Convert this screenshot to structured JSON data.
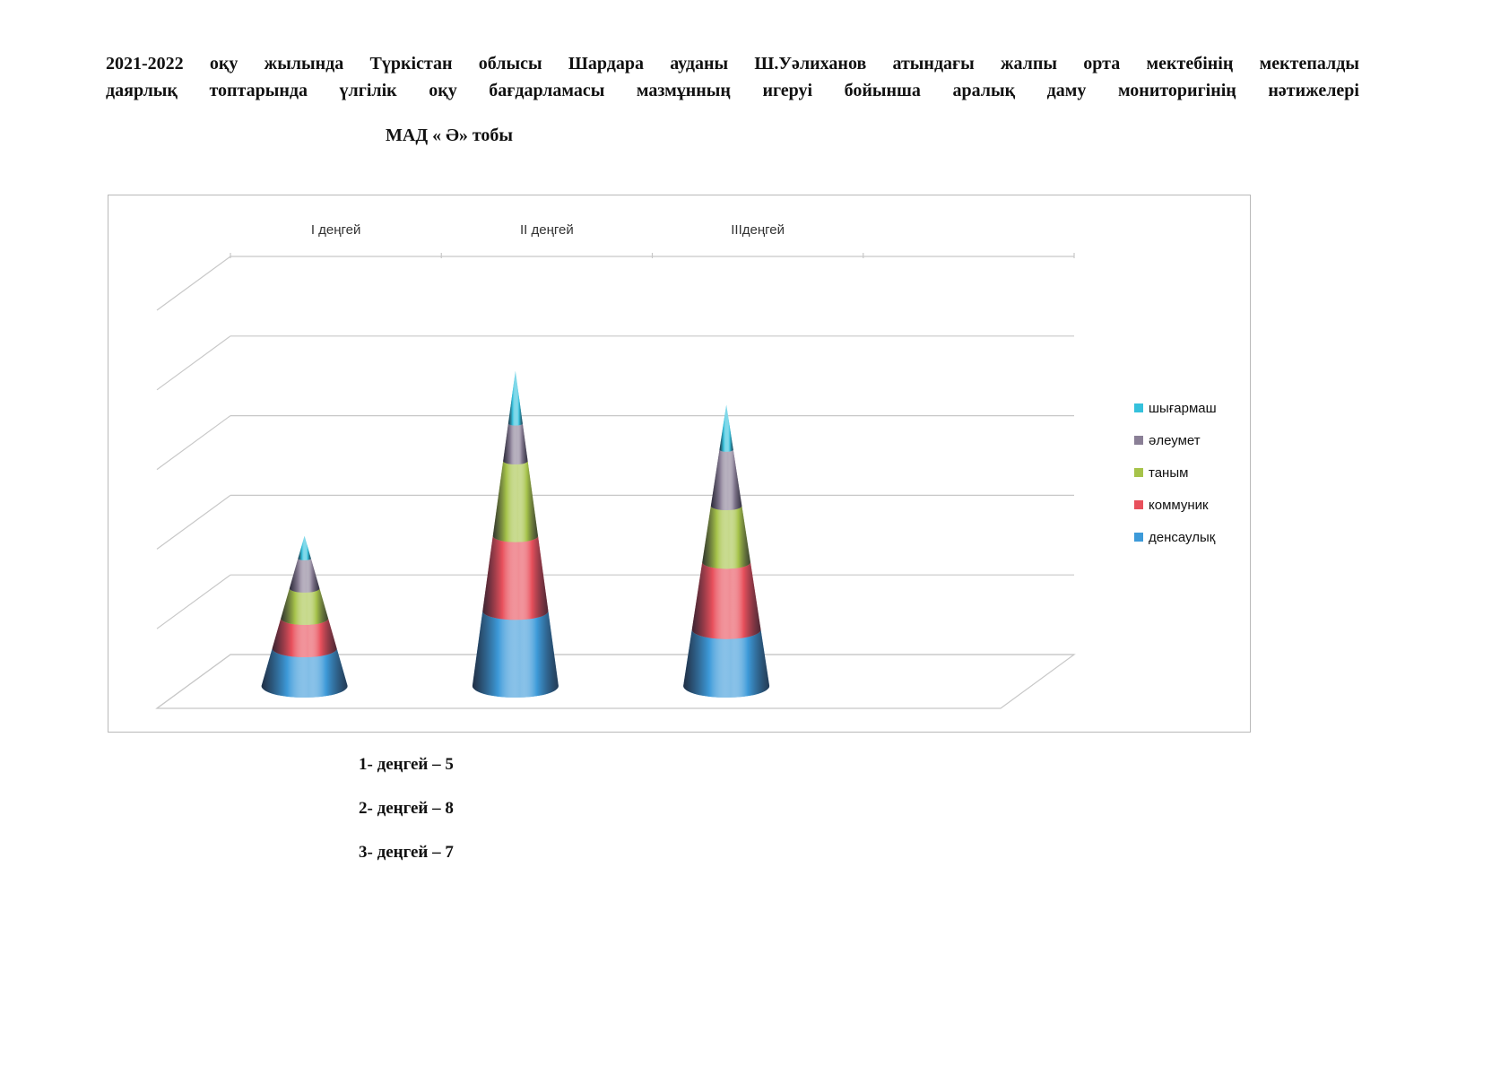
{
  "header": {
    "title_line1": "2021-2022 оқу жылында Түркістан облысы Шардара ауданы Ш.Уәлиханов атындағы жалпы орта мектебінің мектепалды",
    "title_line2": "даярлық топтарында үлгілік оқу бағдарламасы мазмұнның игеруі бойынша аралық даму мониторигінің нәтижелері",
    "subtitle": "МАД « Ә» тобы"
  },
  "chart_data": {
    "type": "bar",
    "stacked": true,
    "shape": "cone-3d",
    "categories": [
      "І деңгей",
      "ІІ деңгей",
      "ІІІдеңгей"
    ],
    "series": [
      {
        "name": "денсаулық",
        "color": "#3d9ad9",
        "values": [
          1,
          2,
          1.5
        ]
      },
      {
        "name": "коммуник",
        "color": "#e8505c",
        "values": [
          0.8,
          2,
          1.8
        ]
      },
      {
        "name": "таным",
        "color": "#a6c34a",
        "values": [
          0.8,
          2,
          1.5
        ]
      },
      {
        "name": "әлеумет",
        "color": "#8a7f96",
        "values": [
          0.8,
          1,
          1.5
        ]
      },
      {
        "name": "шығармаш",
        "color": "#35c1dc",
        "values": [
          0.6,
          1.4,
          1.2
        ]
      }
    ],
    "ylim": [
      0,
      10
    ],
    "grid": true,
    "legend": "right"
  },
  "levels": [
    {
      "text": "1-  деңгей – 5"
    },
    {
      "text": "2-  деңгей – 8"
    },
    {
      "text": "3-  деңгей – 7"
    }
  ]
}
